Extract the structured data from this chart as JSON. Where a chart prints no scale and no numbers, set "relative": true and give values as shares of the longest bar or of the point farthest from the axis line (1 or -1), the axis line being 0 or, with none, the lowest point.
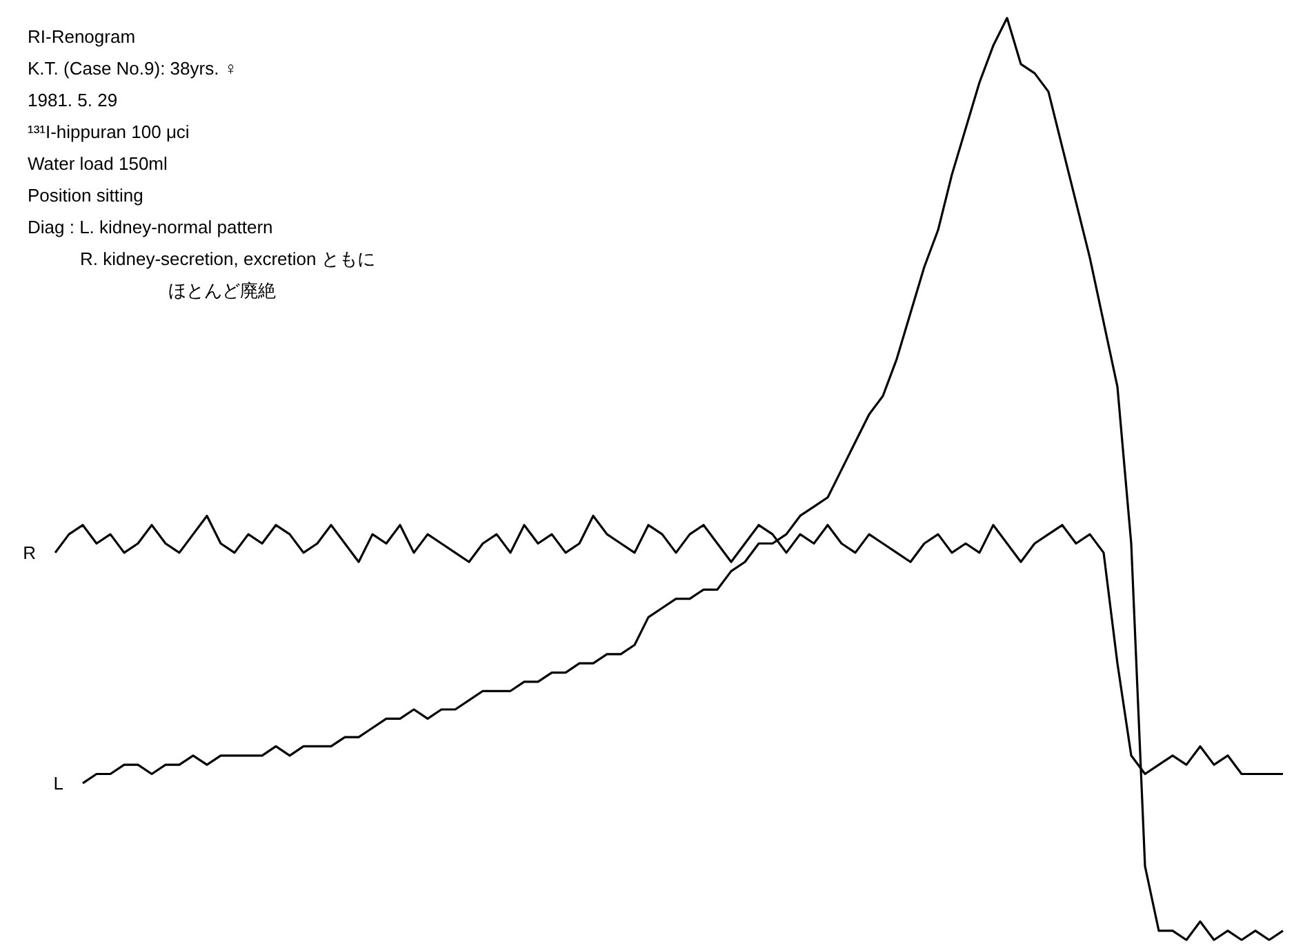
{
  "chart_data": {
    "type": "line",
    "relative": true,
    "legend": false,
    "grid": false,
    "marker": "none",
    "title": "RI-Renogram",
    "subtitle": "K.T. (Case No.9): 38yrs. ♀",
    "annotations": [
      "1981. 5. 29",
      "¹³¹I-hippuran 100 μci",
      "Water load 150ml",
      "Position sitting",
      "Diag : L. kidney-normal pattern",
      "R. kidney-secretion, excretion ともに",
      "ほとんど廃絶"
    ],
    "categories": [
      null,
      null,
      null,
      null,
      null,
      null,
      null,
      null,
      null,
      null,
      null,
      null,
      null,
      null,
      null,
      null,
      null,
      null,
      null,
      null,
      null,
      null,
      null,
      null,
      null,
      null,
      null,
      null,
      null,
      null,
      null,
      null,
      null,
      null,
      null,
      null,
      null,
      null,
      null,
      null,
      null,
      null,
      null,
      null,
      null,
      null,
      null,
      null,
      null,
      null,
      null,
      null,
      null,
      null,
      null,
      null,
      null,
      null,
      null,
      null,
      null,
      null,
      null,
      null,
      null,
      null,
      null,
      null,
      null,
      null,
      null,
      null,
      null,
      null,
      null,
      null,
      null,
      null,
      null,
      null,
      null,
      null,
      null,
      null,
      null,
      null,
      null,
      null,
      null,
      null
    ],
    "series": [
      {
        "name": "R",
        "color": "#000000",
        "values": [
          0.42,
          0.44,
          0.45,
          0.43,
          0.44,
          0.42,
          0.43,
          0.45,
          0.43,
          0.42,
          0.44,
          0.46,
          0.43,
          0.42,
          0.44,
          0.43,
          0.45,
          0.44,
          0.42,
          0.43,
          0.45,
          0.43,
          0.41,
          0.44,
          0.43,
          0.45,
          0.42,
          0.44,
          0.43,
          0.42,
          0.41,
          0.43,
          0.44,
          0.42,
          0.45,
          0.43,
          0.44,
          0.42,
          0.43,
          0.46,
          0.44,
          0.43,
          0.42,
          0.45,
          0.44,
          0.42,
          0.44,
          0.45,
          0.43,
          0.41,
          0.43,
          0.45,
          0.44,
          0.42,
          0.44,
          0.43,
          0.45,
          0.43,
          0.42,
          0.44,
          0.43,
          0.42,
          0.41,
          0.43,
          0.44,
          0.42,
          0.43,
          0.42,
          0.45,
          0.43,
          0.41,
          0.43,
          0.44,
          0.45,
          0.43,
          0.44,
          0.42,
          0.3,
          0.2,
          0.18,
          0.19,
          0.2,
          0.19,
          0.21,
          0.19,
          0.2,
          0.18,
          0.18,
          0.18,
          0.18
        ]
      },
      {
        "name": "L",
        "color": "#000000",
        "values": [
          null,
          null,
          0.17,
          0.18,
          0.18,
          0.19,
          0.19,
          0.18,
          0.19,
          0.19,
          0.2,
          0.19,
          0.2,
          0.2,
          0.2,
          0.2,
          0.21,
          0.2,
          0.21,
          0.21,
          0.21,
          0.22,
          0.22,
          0.23,
          0.24,
          0.24,
          0.25,
          0.24,
          0.25,
          0.25,
          0.26,
          0.27,
          0.27,
          0.27,
          0.28,
          0.28,
          0.29,
          0.29,
          0.3,
          0.3,
          0.31,
          0.31,
          0.32,
          0.35,
          0.36,
          0.37,
          0.37,
          0.38,
          0.38,
          0.4,
          0.41,
          0.43,
          0.43,
          0.44,
          0.46,
          0.47,
          0.48,
          0.51,
          0.54,
          0.57,
          0.59,
          0.63,
          0.68,
          0.73,
          0.77,
          0.83,
          0.88,
          0.93,
          0.97,
          1,
          0.95,
          0.94,
          0.92,
          0.86,
          0.8,
          0.74,
          0.67,
          0.6,
          0.43,
          0.08,
          0.01,
          0.01,
          0.0,
          0.02,
          0.0,
          0.01,
          0.0,
          0.01,
          0.0,
          0.01
        ]
      }
    ]
  }
}
